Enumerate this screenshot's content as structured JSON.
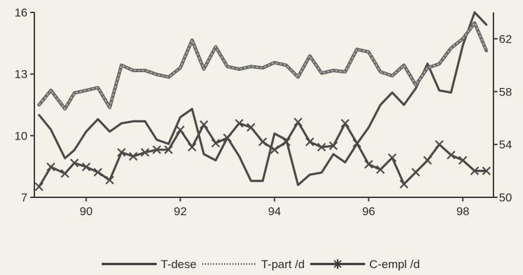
{
  "chart_data": {
    "type": "line",
    "title": "",
    "xlabel": "",
    "ylabel": "",
    "y2label": "",
    "xlim": [
      88.9,
      98.65
    ],
    "ylim": [
      7,
      16
    ],
    "y2lim": [
      50,
      64
    ],
    "xticks": [
      90,
      92,
      94,
      96,
      98
    ],
    "xtick_labels": [
      "90",
      "92",
      "94",
      "96",
      "98"
    ],
    "yticks": [
      7,
      10,
      13,
      16
    ],
    "ytick_labels": [
      "7",
      "10",
      "13",
      "16"
    ],
    "y2ticks": [
      50,
      54,
      58,
      62
    ],
    "y2tick_labels": [
      "50",
      "54",
      "58",
      "62"
    ],
    "grid": false,
    "legend_position": "bottom",
    "series": [
      {
        "name": "T-dese",
        "axis": "left",
        "style": "solid",
        "color": "#4a4a4a",
        "x": [
          89.0,
          89.25,
          89.55,
          89.75,
          90.0,
          90.25,
          90.5,
          90.75,
          91.0,
          91.25,
          91.5,
          91.75,
          92.0,
          92.25,
          92.5,
          92.75,
          93.0,
          93.25,
          93.5,
          93.75,
          94.0,
          94.25,
          94.5,
          94.75,
          95.0,
          95.25,
          95.5,
          95.75,
          96.0,
          96.25,
          96.5,
          96.75,
          97.0,
          97.25,
          97.5,
          97.75,
          98.0,
          98.25,
          98.5
        ],
        "values": [
          11.0,
          10.3,
          8.9,
          9.3,
          10.2,
          10.8,
          10.2,
          10.6,
          10.7,
          10.7,
          9.8,
          9.6,
          10.9,
          11.3,
          9.1,
          8.8,
          9.9,
          9.0,
          7.8,
          7.8,
          10.1,
          9.8,
          7.6,
          8.1,
          8.2,
          9.1,
          8.7,
          9.6,
          10.4,
          11.5,
          12.1,
          11.5,
          12.3,
          13.5,
          12.2,
          12.1,
          14.4,
          16.0,
          15.4
        ]
      },
      {
        "name": "T-part /d",
        "axis": "right",
        "style": "dashed",
        "color": "#4a4a4a",
        "x": [
          89.0,
          89.25,
          89.55,
          89.75,
          90.0,
          90.25,
          90.5,
          90.75,
          91.0,
          91.25,
          91.5,
          91.75,
          92.0,
          92.25,
          92.5,
          92.75,
          93.0,
          93.25,
          93.5,
          93.75,
          94.0,
          94.25,
          94.5,
          94.75,
          95.0,
          95.25,
          95.5,
          95.75,
          96.0,
          96.25,
          96.5,
          96.75,
          97.0,
          97.25,
          97.5,
          97.75,
          98.0,
          98.25,
          98.5
        ],
        "values": [
          57.0,
          58.1,
          56.7,
          57.9,
          58.1,
          58.3,
          56.8,
          60.0,
          59.6,
          59.6,
          59.3,
          59.1,
          59.8,
          61.9,
          59.7,
          61.4,
          59.9,
          59.7,
          59.9,
          59.8,
          60.2,
          60.0,
          59.1,
          60.7,
          59.4,
          59.6,
          59.5,
          61.2,
          61.0,
          59.5,
          59.2,
          60.0,
          58.5,
          59.8,
          60.1,
          61.3,
          62.0,
          63.2,
          61.1
        ]
      },
      {
        "name": "C-empl /d",
        "axis": "right",
        "style": "solid-with-x-markers",
        "color": "#4a4a4a",
        "x": [
          89.0,
          89.25,
          89.55,
          89.75,
          90.0,
          90.25,
          90.5,
          90.75,
          91.0,
          91.25,
          91.5,
          91.75,
          92.0,
          92.25,
          92.5,
          92.75,
          93.0,
          93.25,
          93.5,
          93.75,
          94.0,
          94.25,
          94.5,
          94.75,
          95.0,
          95.25,
          95.5,
          95.75,
          96.0,
          96.25,
          96.5,
          96.75,
          97.0,
          97.25,
          97.5,
          97.75,
          98.0,
          98.25,
          98.5
        ],
        "values": [
          50.8,
          52.3,
          51.8,
          52.6,
          52.3,
          51.9,
          51.3,
          53.4,
          53.1,
          53.4,
          53.6,
          53.6,
          55.1,
          53.8,
          55.5,
          54.1,
          54.5,
          55.6,
          55.3,
          54.2,
          53.6,
          54.2,
          55.7,
          54.2,
          53.8,
          53.9,
          55.6,
          54.1,
          52.5,
          52.1,
          53.0,
          51.0,
          51.9,
          52.8,
          54.0,
          53.2,
          52.8,
          52.0,
          52.0
        ]
      }
    ]
  }
}
